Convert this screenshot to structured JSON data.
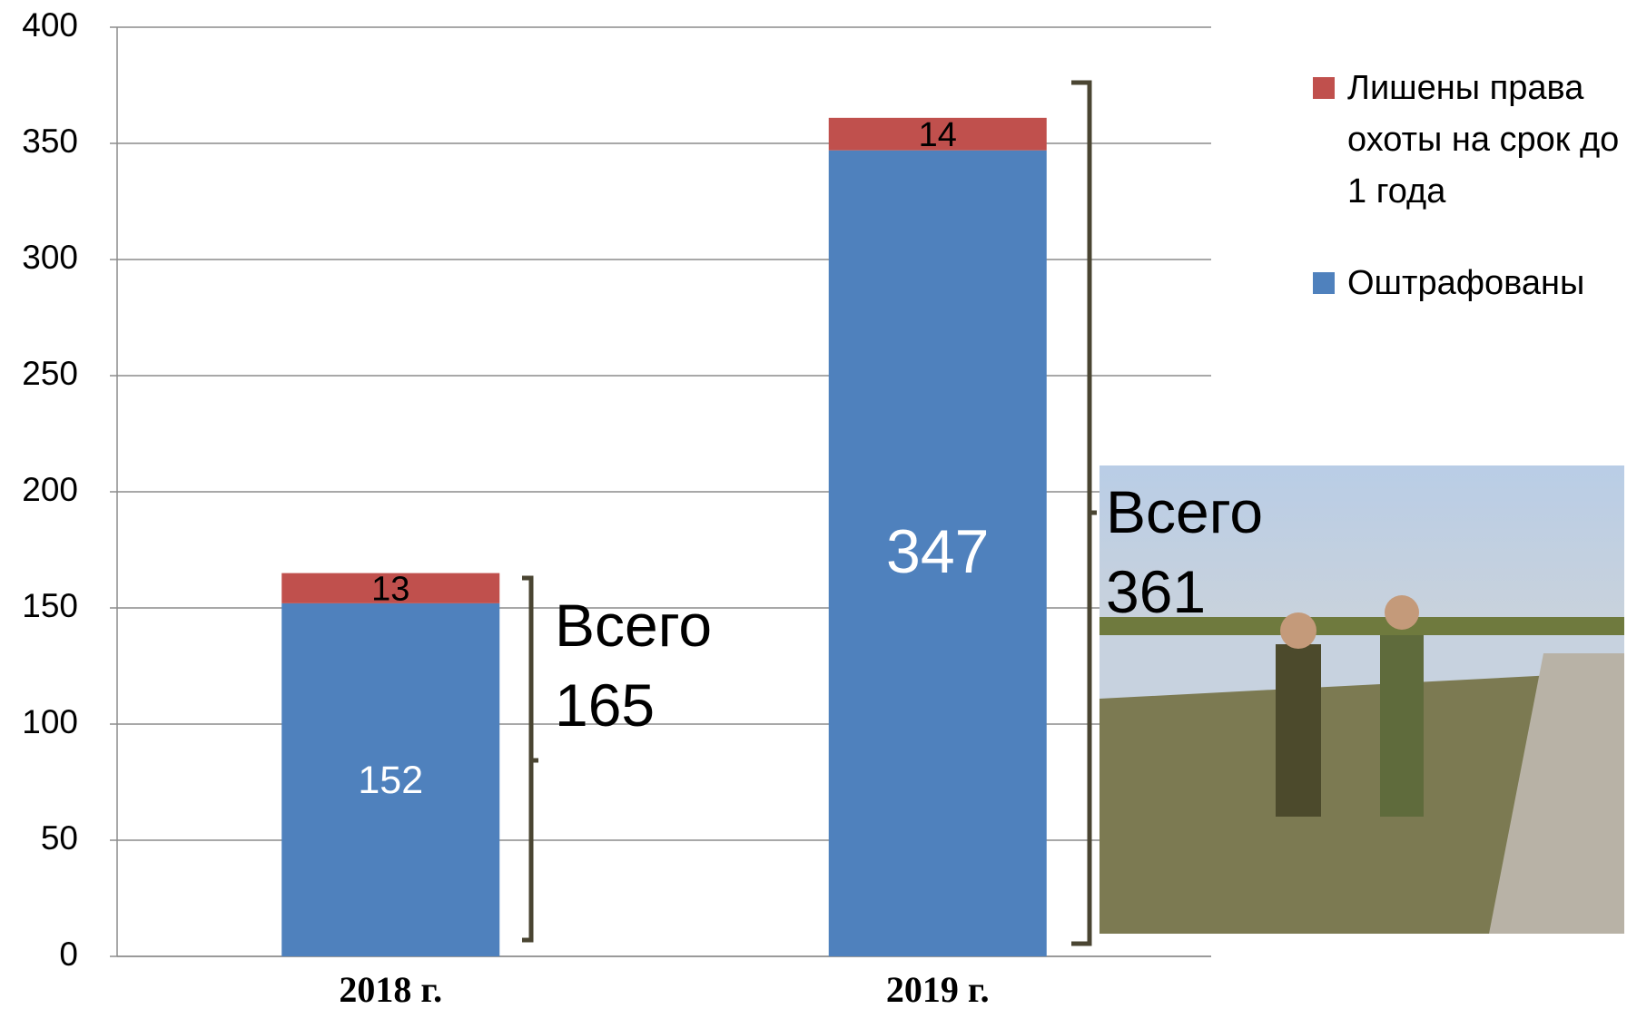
{
  "chart_data": {
    "type": "stacked_bar",
    "categories": [
      "2018 г.",
      "2019 г."
    ],
    "series": [
      {
        "name": "Оштрафованы",
        "color": "#4f81bd",
        "values": [
          152,
          347
        ]
      },
      {
        "name": "Лишены права охоты на срок до 1 года",
        "color": "#c0504d",
        "values": [
          13,
          14
        ]
      }
    ],
    "ylim": [
      0,
      400
    ],
    "yticks": [
      0,
      50,
      100,
      150,
      200,
      250,
      300,
      350,
      400
    ],
    "grid": true,
    "annotations": [
      "Всего 165",
      "Всего 361"
    ],
    "legend": "right"
  }
}
